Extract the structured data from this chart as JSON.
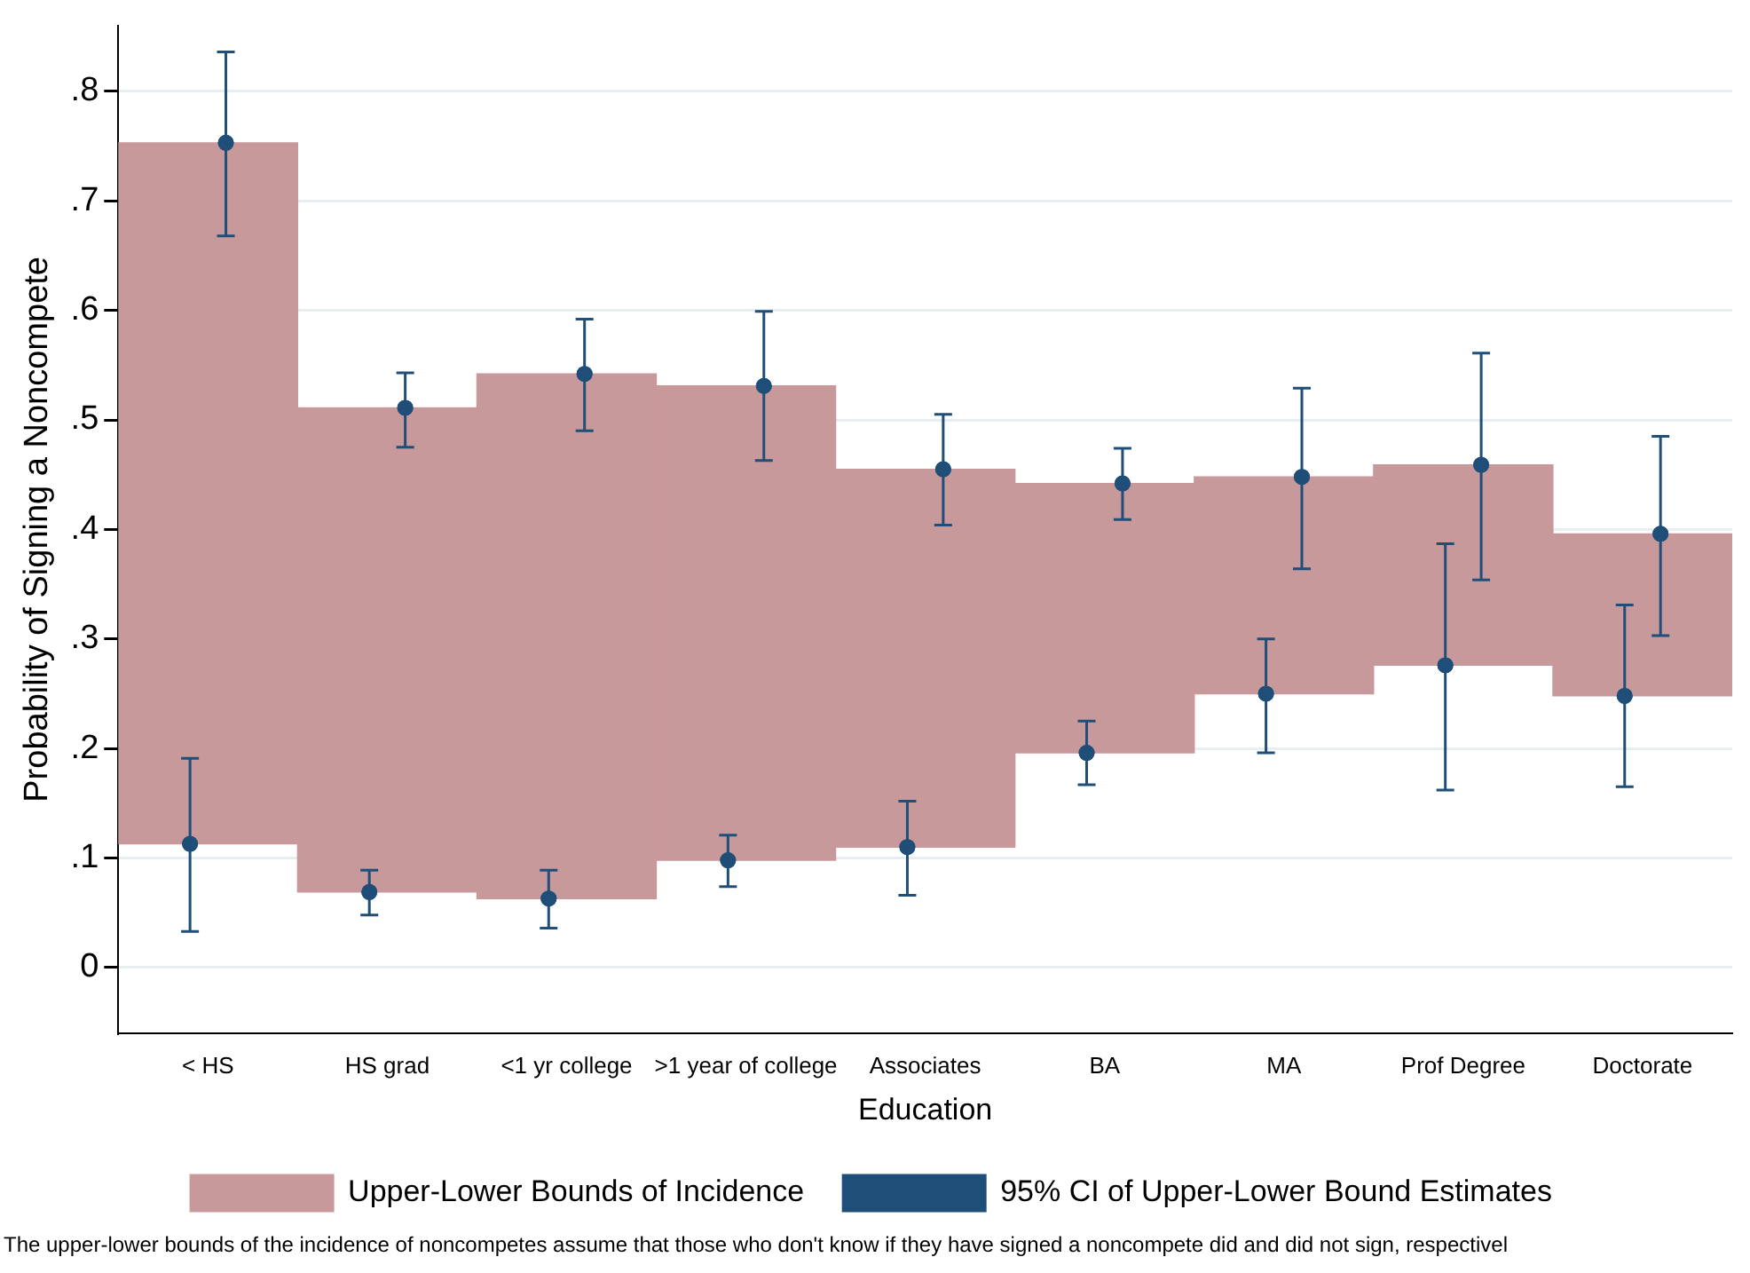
{
  "chart_data": {
    "type": "bar",
    "xlabel": "Education",
    "ylabel": "Probability of Signing a Noncompete",
    "categories": [
      "< HS",
      "HS grad",
      "<1 yr college",
      ">1 year of college",
      "Associates",
      "BA",
      "MA",
      "Prof Degree",
      "Doctorate"
    ],
    "series": [
      {
        "name": "Upper-Lower Bounds of Incidence",
        "color": "#c8999b",
        "base": [
          0.113,
          0.069,
          0.063,
          0.098,
          0.11,
          0.196,
          0.25,
          0.276,
          0.248
        ],
        "values": [
          0.64,
          0.442,
          0.479,
          0.433,
          0.345,
          0.246,
          0.198,
          0.183,
          0.148
        ]
      },
      {
        "type": "scatter",
        "name": "95% CI of Upper-Lower Bound Estimates",
        "color": "#1f4e79",
        "x": [
          "< HS",
          "HS grad",
          "<1 yr college",
          ">1 year of college",
          "Associates",
          "BA",
          "MA",
          "Prof Degree",
          "Doctorate"
        ],
        "values": [
          0.753,
          0.511,
          0.542,
          0.531,
          0.455,
          0.442,
          0.448,
          0.459,
          0.396
        ],
        "errors": [
          [
            0.668,
            0.836
          ],
          [
            0.475,
            0.543
          ],
          [
            0.49,
            0.592
          ],
          [
            0.463,
            0.599
          ],
          [
            0.404,
            0.505
          ],
          [
            0.409,
            0.474
          ],
          [
            0.364,
            0.529
          ],
          [
            0.354,
            0.561
          ],
          [
            0.303,
            0.485
          ]
        ]
      },
      {
        "type": "scatter",
        "color": "#1f4e79",
        "x": [
          "< HS",
          "HS grad",
          "<1 yr college",
          ">1 year of college",
          "Associates",
          "BA",
          "MA",
          "Prof Degree",
          "Doctorate"
        ],
        "values": [
          0.113,
          0.069,
          0.063,
          0.098,
          0.11,
          0.196,
          0.25,
          0.276,
          0.248
        ],
        "errors": [
          [
            0.033,
            0.191
          ],
          [
            0.048,
            0.089
          ],
          [
            0.036,
            0.089
          ],
          [
            0.074,
            0.121
          ],
          [
            0.066,
            0.152
          ],
          [
            0.167,
            0.225
          ],
          [
            0.196,
            0.3
          ],
          [
            0.162,
            0.387
          ],
          [
            0.165,
            0.331
          ]
        ]
      }
    ],
    "ylim": [
      -0.06,
      0.86
    ],
    "yticks": [
      {
        "value": 0,
        "label": "0"
      },
      {
        "value": 0.1,
        "label": ".1"
      },
      {
        "value": 0.2,
        "label": ".2"
      },
      {
        "value": 0.3,
        "label": ".3"
      },
      {
        "value": 0.4,
        "label": ".4"
      },
      {
        "value": 0.5,
        "label": ".5"
      },
      {
        "value": 0.6,
        "label": ".6"
      },
      {
        "value": 0.7,
        "label": ".7"
      },
      {
        "value": 0.8,
        "label": ".8"
      }
    ],
    "grid": "y",
    "legend": "bottom",
    "marker": "circle",
    "annotations": [
      "The upper-lower bounds of the incidence of noncompetes assume that those who don't know if they have signed a noncompete did and did not sign, respectivel"
    ]
  }
}
